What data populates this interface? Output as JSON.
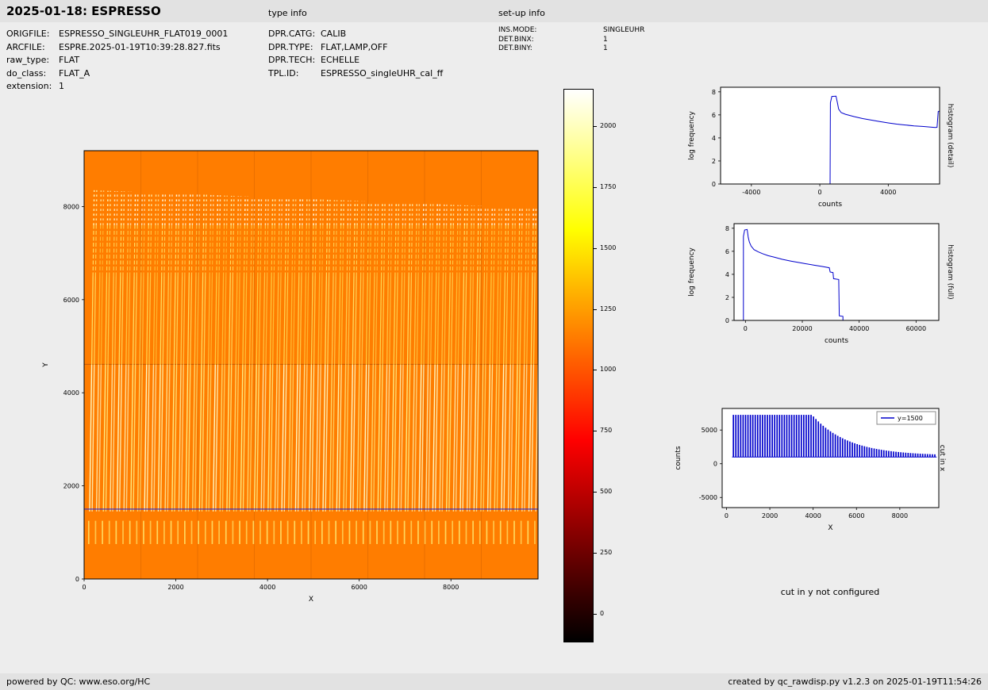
{
  "header": {
    "title": "2025-01-18: ESPRESSO",
    "type_info_heading": "type info",
    "setup_info_heading": "set-up info"
  },
  "file_info": {
    "rows": [
      {
        "label": "ORIGFILE:",
        "value": "ESPRESSO_SINGLEUHR_FLAT019_0001"
      },
      {
        "label": "ARCFILE:",
        "value": "ESPRE.2025-01-19T10:39:28.827.fits"
      },
      {
        "label": "raw_type:",
        "value": "FLAT"
      },
      {
        "label": "do_class:",
        "value": "FLAT_A"
      },
      {
        "label": "extension:",
        "value": "1"
      }
    ]
  },
  "type_info": {
    "rows": [
      {
        "label": "DPR.CATG:",
        "value": "CALIB"
      },
      {
        "label": "DPR.TYPE:",
        "value": "FLAT,LAMP,OFF"
      },
      {
        "label": "DPR.TECH:",
        "value": "ECHELLE"
      },
      {
        "label": "TPL.ID:",
        "value": "ESPRESSO_singleUHR_cal_ff"
      }
    ]
  },
  "setup_info": {
    "rows": [
      {
        "label": "INS.MODE:",
        "value": "SINGLEUHR"
      },
      {
        "label": "DET.BINX:",
        "value": "1"
      },
      {
        "label": "DET.BINY:",
        "value": "1"
      }
    ]
  },
  "notes": {
    "cut_in_y": "cut in y not configured"
  },
  "footer": {
    "left": "powered by QC: www.eso.org/HC",
    "right": "created by qc_rawdisp.py v1.2.3 on 2025-01-19T11:54:26"
  },
  "colors": {
    "line_blue": "#0000cc",
    "cut_line_blue": "#2b2bcf",
    "image_background": "#ff7d00"
  },
  "chart_data": [
    {
      "id": "raw-image",
      "type": "heatmap",
      "xlabel": "X",
      "ylabel": "Y",
      "xlim": [
        0,
        9900
      ],
      "ylim": [
        0,
        9200
      ],
      "xticks": [
        0,
        2000,
        4000,
        6000,
        8000
      ],
      "yticks": [
        0,
        2000,
        4000,
        6000,
        8000
      ],
      "colormap": "hot",
      "background_value": 1050,
      "colorbar": {
        "vmin": -115,
        "vmax": 2150,
        "ticks": [
          0,
          250,
          500,
          750,
          1000,
          1250,
          1500,
          1750,
          2000
        ]
      },
      "orders": {
        "count": 66,
        "x_first": 120,
        "x_last": 9850,
        "y_bottom": 1450,
        "y_top": 8350,
        "top_slope_per_order": 6,
        "tilt": 100,
        "pair_offset": 55,
        "marks_y": [
          750,
          1250
        ],
        "typical_value": 1800
      },
      "seams": {
        "x": [
          1238,
          2475,
          3712,
          4950,
          6188,
          7425,
          8662
        ],
        "y": [
          4610
        ]
      },
      "cut_line": {
        "y": 1500,
        "label": "y=1500"
      }
    },
    {
      "id": "histogram-detail",
      "type": "line",
      "side_label": "histogram (detail)",
      "xlabel": "counts",
      "ylabel": "log frequency",
      "xlim": [
        -5800,
        7000
      ],
      "ylim": [
        0,
        8.4
      ],
      "xticks": [
        -4000,
        0,
        4000
      ],
      "yticks": [
        0,
        2,
        4,
        6,
        8
      ],
      "points": [
        [
          600,
          0
        ],
        [
          620,
          7.05
        ],
        [
          700,
          7.6
        ],
        [
          950,
          7.62
        ],
        [
          1020,
          7.1
        ],
        [
          1100,
          6.5
        ],
        [
          1250,
          6.2
        ],
        [
          1500,
          6.05
        ],
        [
          2000,
          5.85
        ],
        [
          2500,
          5.68
        ],
        [
          3000,
          5.55
        ],
        [
          3500,
          5.42
        ],
        [
          4000,
          5.3
        ],
        [
          4500,
          5.2
        ],
        [
          5000,
          5.12
        ],
        [
          5500,
          5.05
        ],
        [
          6000,
          5.0
        ],
        [
          6400,
          4.95
        ],
        [
          6750,
          4.9
        ],
        [
          6850,
          4.92
        ],
        [
          6920,
          6.3
        ],
        [
          7000,
          6.33
        ]
      ]
    },
    {
      "id": "histogram-full",
      "type": "line",
      "side_label": "histogram (full)",
      "xlabel": "counts",
      "ylabel": "log frequency",
      "xlim": [
        -4000,
        68000
      ],
      "ylim": [
        0,
        8.4
      ],
      "xticks": [
        0,
        20000,
        40000,
        60000
      ],
      "yticks": [
        0,
        2,
        4,
        6,
        8
      ],
      "points": [
        [
          -700,
          0
        ],
        [
          -700,
          7.3
        ],
        [
          -300,
          7.85
        ],
        [
          600,
          7.9
        ],
        [
          1000,
          7.2
        ],
        [
          1400,
          6.8
        ],
        [
          2000,
          6.45
        ],
        [
          3000,
          6.15
        ],
        [
          4500,
          5.95
        ],
        [
          6000,
          5.8
        ],
        [
          8000,
          5.62
        ],
        [
          10000,
          5.5
        ],
        [
          13000,
          5.3
        ],
        [
          16000,
          5.15
        ],
        [
          20000,
          4.97
        ],
        [
          24000,
          4.8
        ],
        [
          27000,
          4.68
        ],
        [
          29500,
          4.57
        ],
        [
          29800,
          4.2
        ],
        [
          30800,
          4.15
        ],
        [
          31000,
          3.62
        ],
        [
          32800,
          3.55
        ],
        [
          33000,
          0.4
        ],
        [
          34300,
          0.35
        ],
        [
          34300,
          0
        ]
      ]
    },
    {
      "id": "cut-in-x",
      "type": "line",
      "side_label": "cut in x",
      "xlabel": "X",
      "ylabel": "counts",
      "xlim": [
        -200,
        9800
      ],
      "ylim": [
        -6500,
        8200
      ],
      "xticks": [
        0,
        2000,
        4000,
        6000,
        8000
      ],
      "yticks": [
        -5000,
        0,
        5000
      ],
      "legend": {
        "label": "y=1500"
      },
      "comb": {
        "x_start": 320,
        "x_end": 9640,
        "spacing": 112,
        "flat_until": 3950,
        "peak_flat": 7250,
        "peak_min": 1200,
        "amp": 6050,
        "decay_scale": 1650,
        "baseline": 1000
      }
    }
  ]
}
